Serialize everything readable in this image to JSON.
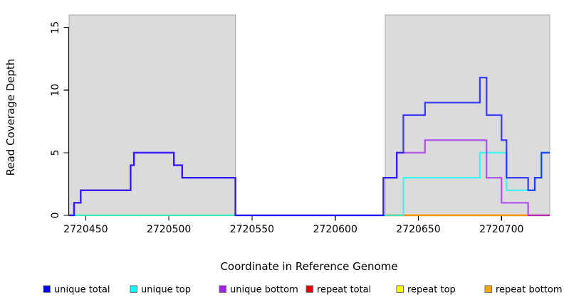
{
  "figure": {
    "title": "",
    "x_axis_title": "Coordinate in Reference Genome",
    "y_axis_title": "Read Coverage Depth"
  },
  "chart_data": {
    "type": "line",
    "subtype": "step",
    "xlabel": "Coordinate in Reference Genome",
    "ylabel": "Read Coverage Depth",
    "xlim": [
      2720440,
      2720729
    ],
    "ylim": [
      0,
      16
    ],
    "x_ticks": [
      2720450,
      2720500,
      2720550,
      2720600,
      2720650,
      2720700
    ],
    "y_ticks": [
      0,
      5,
      10,
      15
    ],
    "grid": false,
    "legend_position": "bottom",
    "background_regions": [
      {
        "name": "left-shaded-region",
        "x_start": 2720440,
        "x_end": 2720540,
        "fill": "#DBDBDB",
        "stroke": "#A8A8A8"
      },
      {
        "name": "right-shaded-region",
        "x_start": 2720630,
        "x_end": 2720729,
        "fill": "#DBDBDB",
        "stroke": "#A8A8A8"
      }
    ],
    "series": [
      {
        "name": "repeat-top",
        "label": "repeat top",
        "color": "#FFFF00",
        "opacity": 0.72,
        "segments": [
          [
            [
              2720440,
              0
            ],
            [
              2720540,
              0
            ]
          ],
          [
            [
              2720630,
              0
            ],
            [
              2720729,
              0
            ]
          ]
        ]
      },
      {
        "name": "repeat-total",
        "label": "repeat total",
        "color": "#E60000",
        "opacity": 0.72,
        "segments": [
          [
            [
              2720630,
              0
            ],
            [
              2720729,
              0
            ]
          ]
        ]
      },
      {
        "name": "repeat-bottom",
        "label": "repeat bottom",
        "color": "#FFA500",
        "opacity": 0.85,
        "segments": [
          [
            [
              2720630,
              0
            ],
            [
              2720716,
              0
            ]
          ]
        ]
      },
      {
        "name": "unique-top",
        "label": "unique top",
        "color": "#00FFFF",
        "opacity": 0.72,
        "segments": [
          [
            [
              2720440,
              0
            ],
            [
              2720641,
              3
            ],
            [
              2720687,
              5
            ],
            [
              2720703,
              2
            ],
            [
              2720720,
              3
            ],
            [
              2720724,
              5
            ],
            [
              2720729,
              5
            ]
          ]
        ]
      },
      {
        "name": "unique-bottom",
        "label": "unique bottom",
        "color": "#A020F0",
        "opacity": 0.72,
        "segments": [
          [
            [
              2720440,
              0
            ],
            [
              2720443,
              1
            ],
            [
              2720447,
              2
            ],
            [
              2720477,
              4
            ],
            [
              2720479,
              5
            ],
            [
              2720503,
              4
            ],
            [
              2720508,
              3
            ],
            [
              2720540,
              0
            ],
            [
              2720629,
              3
            ],
            [
              2720637,
              5
            ],
            [
              2720654,
              6
            ],
            [
              2720691,
              3
            ],
            [
              2720700,
              1
            ],
            [
              2720716,
              0
            ],
            [
              2720729,
              0
            ]
          ]
        ]
      },
      {
        "name": "unique-total",
        "label": "unique total",
        "color": "#0000FF",
        "opacity": 0.72,
        "segments": [
          [
            [
              2720440,
              0
            ],
            [
              2720443,
              1
            ],
            [
              2720447,
              2
            ],
            [
              2720477,
              4
            ],
            [
              2720479,
              5
            ],
            [
              2720503,
              4
            ],
            [
              2720508,
              3
            ],
            [
              2720540,
              0
            ],
            [
              2720629,
              3
            ],
            [
              2720637,
              5
            ],
            [
              2720641,
              8
            ],
            [
              2720654,
              9
            ],
            [
              2720687,
              11
            ],
            [
              2720691,
              8
            ],
            [
              2720700,
              6
            ],
            [
              2720703,
              3
            ],
            [
              2720716,
              2
            ],
            [
              2720720,
              3
            ],
            [
              2720724,
              5
            ],
            [
              2720729,
              5
            ]
          ]
        ]
      }
    ],
    "legend": [
      {
        "label": "unique total",
        "color": "#0000FF"
      },
      {
        "label": "unique top",
        "color": "#00FFFF"
      },
      {
        "label": "unique bottom",
        "color": "#A020F0"
      },
      {
        "label": "repeat total",
        "color": "#E60000"
      },
      {
        "label": "repeat top",
        "color": "#FFFF00"
      },
      {
        "label": "repeat bottom",
        "color": "#FFA500"
      }
    ]
  }
}
